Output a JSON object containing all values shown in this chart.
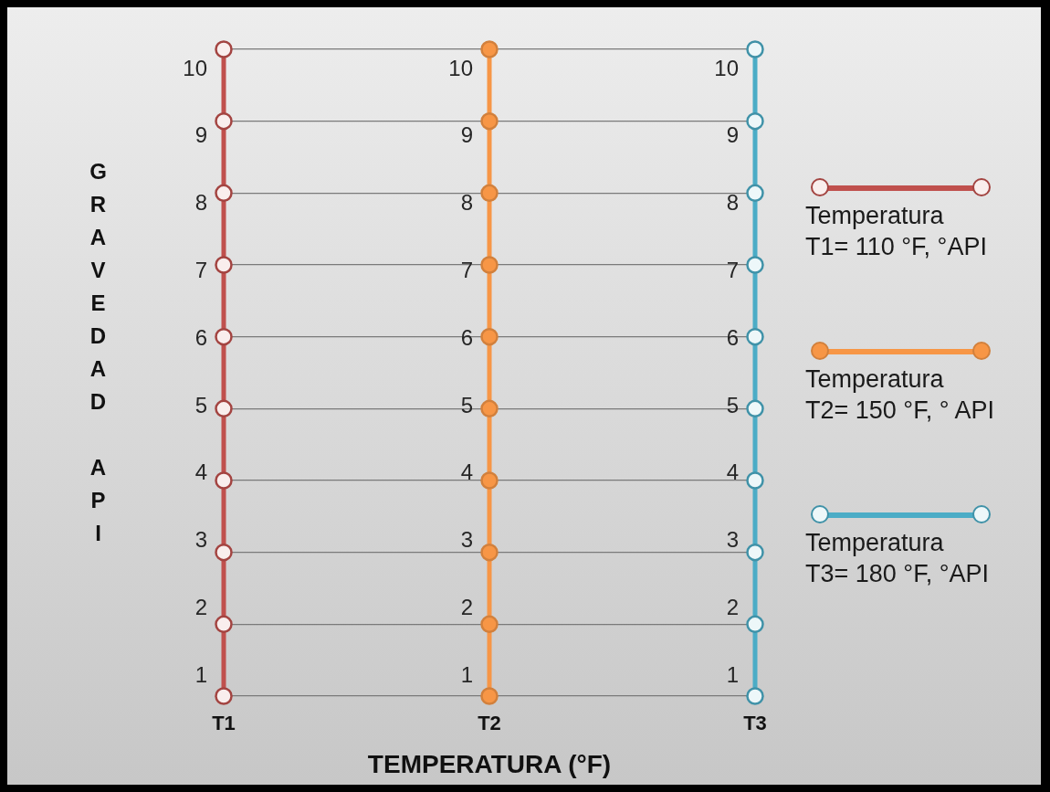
{
  "chart_data": {
    "type": "line",
    "xlabel": "TEMPERATURA (°F)",
    "ylabel": "GRAVEDAD API",
    "categories": [
      "T1",
      "T2",
      "T3"
    ],
    "series": [
      {
        "name": "Temperatura\nT1= 110 °F, °API",
        "color": "#c0504d",
        "x": [
          "T1",
          "T1",
          "T1",
          "T1",
          "T1",
          "T1",
          "T1",
          "T1",
          "T1",
          "T1"
        ],
        "values": [
          1,
          2,
          3,
          4,
          5,
          6,
          7,
          8,
          9,
          10
        ]
      },
      {
        "name": "Temperatura\nT2= 150 °F, ° API",
        "color": "#f79646",
        "x": [
          "T2",
          "T2",
          "T2",
          "T2",
          "T2",
          "T2",
          "T2",
          "T2",
          "T2",
          "T2"
        ],
        "values": [
          1,
          2,
          3,
          4,
          5,
          6,
          7,
          8,
          9,
          10
        ]
      },
      {
        "name": "Temperatura\nT3= 180 °F, °API",
        "color": "#4bacc6",
        "x": [
          "T3",
          "T3",
          "T3",
          "T3",
          "T3",
          "T3",
          "T3",
          "T3",
          "T3",
          "T3"
        ],
        "values": [
          1,
          2,
          3,
          4,
          5,
          6,
          7,
          8,
          9,
          10
        ]
      }
    ],
    "ylim": [
      1,
      10
    ],
    "yticks": [
      1,
      2,
      3,
      4,
      5,
      6,
      7,
      8,
      9,
      10
    ],
    "tick_labels": "x",
    "grid": "y",
    "legend": "right",
    "marker": "circle",
    "data_labels": true
  }
}
